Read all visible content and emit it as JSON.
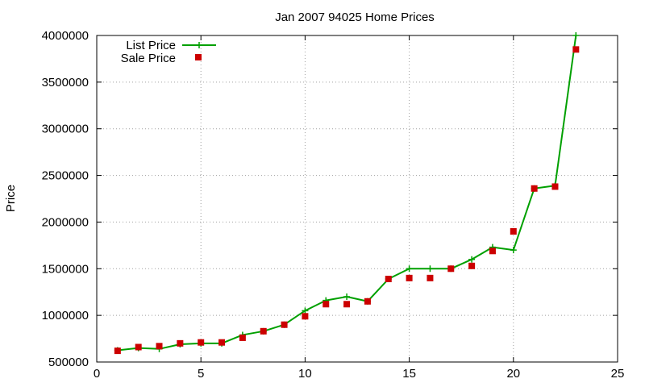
{
  "chart_data": {
    "type": "line",
    "title": "Jan 2007 94025 Home Prices",
    "xlabel": "",
    "ylabel": "Price",
    "xlim": [
      0,
      25
    ],
    "ylim": [
      500000,
      4000000
    ],
    "xticks": [
      "0",
      "5",
      "10",
      "15",
      "20",
      "25"
    ],
    "yticks": [
      "500000",
      "1000000",
      "1500000",
      "2000000",
      "2500000",
      "3000000",
      "3500000",
      "4000000"
    ],
    "grid": true,
    "legend_position": "top-left",
    "series": [
      {
        "name": "List Price",
        "style": "line-with-plus-markers",
        "color": "#00a000",
        "x": [
          1,
          2,
          3,
          4,
          5,
          6,
          7,
          8,
          9,
          10,
          11,
          12,
          13,
          14,
          15,
          16,
          17,
          18,
          19,
          20,
          21,
          22,
          23
        ],
        "y": [
          625000,
          650000,
          640000,
          690000,
          700000,
          700000,
          790000,
          830000,
          900000,
          1050000,
          1160000,
          1200000,
          1150000,
          1390000,
          1500000,
          1500000,
          1500000,
          1600000,
          1730000,
          1700000,
          2360000,
          2390000,
          4000000
        ]
      },
      {
        "name": "Sale Price",
        "style": "square-markers",
        "color": "#cc0000",
        "x": [
          1,
          2,
          3,
          4,
          5,
          6,
          7,
          8,
          9,
          10,
          11,
          12,
          13,
          14,
          15,
          16,
          17,
          18,
          19,
          20,
          21,
          22,
          23
        ],
        "y": [
          620000,
          660000,
          670000,
          700000,
          710000,
          710000,
          760000,
          830000,
          900000,
          990000,
          1120000,
          1120000,
          1150000,
          1390000,
          1400000,
          1400000,
          1500000,
          1530000,
          1690000,
          1900000,
          2360000,
          2380000,
          3850000
        ]
      }
    ]
  }
}
